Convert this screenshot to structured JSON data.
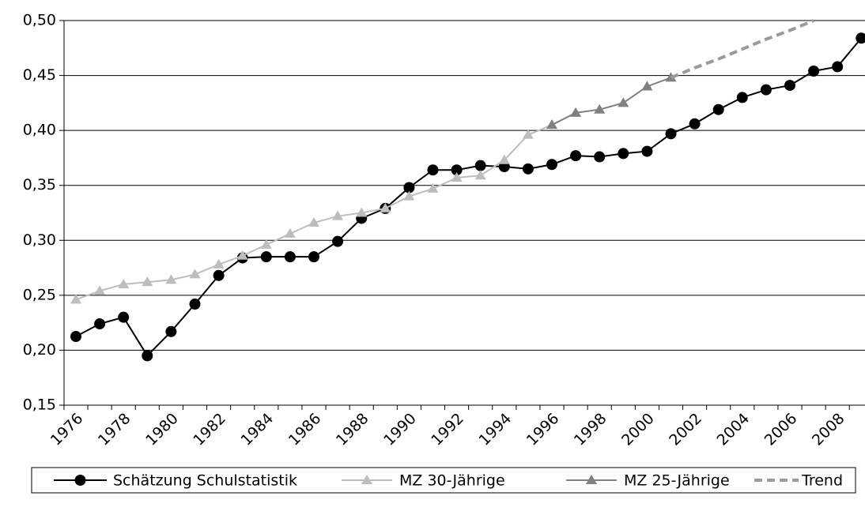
{
  "chart_data": {
    "type": "line",
    "categories": [
      "1976",
      null,
      "1978",
      null,
      "1980",
      null,
      "1982",
      null,
      "1984",
      null,
      "1986",
      null,
      "1988",
      null,
      "1990",
      null,
      "1992",
      null,
      "1994",
      null,
      "1996",
      null,
      "1998",
      null,
      "2000",
      null,
      "2002",
      null,
      "2004",
      null,
      "2006",
      null,
      "2008",
      null
    ],
    "series": [
      {
        "name": "Schätzung Schulstatistik",
        "color": "#000000",
        "marker": "circle",
        "values": [
          0.2125,
          0.224,
          0.23,
          0.195,
          0.217,
          0.242,
          0.268,
          0.284,
          0.285,
          0.285,
          0.285,
          0.299,
          0.32,
          0.329,
          0.348,
          0.364,
          0.364,
          0.368,
          0.367,
          0.365,
          0.369,
          0.377,
          0.376,
          0.379,
          0.381,
          0.397,
          0.406,
          0.419,
          0.43,
          0.437,
          0.441,
          0.454,
          0.458,
          0.484
        ]
      },
      {
        "name": "MZ 30-Jährige",
        "color": "#bdbdbd",
        "marker": "triangle",
        "values": [
          0.246,
          0.254,
          0.26,
          0.262,
          0.264,
          0.269,
          0.278,
          0.286,
          0.296,
          0.306,
          0.316,
          0.322,
          0.325,
          0.329,
          0.34,
          0.347,
          0.357,
          0.359,
          0.373,
          0.396,
          0.405,
          null,
          null,
          null,
          null,
          null,
          null,
          null,
          null,
          null,
          null,
          null,
          null,
          null
        ]
      },
      {
        "name": "MZ 25-Jährige",
        "color": "#808080",
        "marker": "triangle",
        "values": [
          null,
          null,
          null,
          null,
          null,
          null,
          null,
          null,
          null,
          null,
          null,
          null,
          null,
          null,
          null,
          null,
          null,
          null,
          null,
          null,
          0.405,
          0.416,
          0.419,
          0.425,
          0.44,
          0.448,
          null,
          null,
          null,
          null,
          null,
          null,
          null,
          null
        ]
      },
      {
        "name": "Trend",
        "color": "#999999",
        "dash": true,
        "values": [
          null,
          null,
          null,
          null,
          null,
          null,
          null,
          null,
          null,
          null,
          null,
          null,
          null,
          null,
          null,
          null,
          null,
          null,
          null,
          null,
          null,
          null,
          null,
          null,
          null,
          0.448,
          0.457,
          0.465,
          0.474,
          0.483,
          0.491,
          0.5,
          null,
          null
        ]
      }
    ],
    "ylim": [
      0.15,
      0.5
    ],
    "yticks": [
      {
        "value": 0.15,
        "label": "0,15"
      },
      {
        "value": 0.2,
        "label": "0,20"
      },
      {
        "value": 0.25,
        "label": "0,25"
      },
      {
        "value": 0.3,
        "label": "0,30"
      },
      {
        "value": 0.35,
        "label": "0,35"
      },
      {
        "value": 0.4,
        "label": "0,40"
      },
      {
        "value": 0.45,
        "label": "0,45"
      },
      {
        "value": 0.5,
        "label": "0,50"
      }
    ],
    "grid": true,
    "legend": "bottom"
  }
}
